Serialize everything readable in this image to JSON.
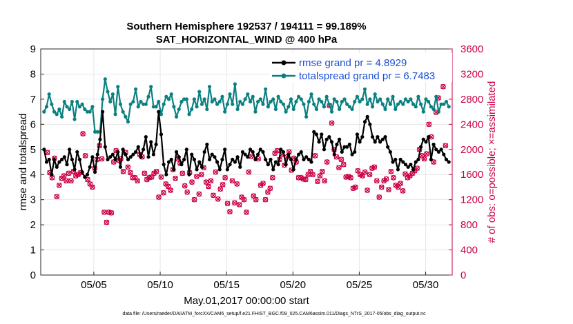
{
  "chart_data": {
    "type": "line",
    "title": "Southern Hemisphere 192537 / 194111 = 99.189%",
    "subtitle": "SAT_HORIZONTAL_WIND @ 400 hPa",
    "xlabel": "May.01,2017 00:00:00 start",
    "ylabel": "rmse and totalspread",
    "ylabel_right": "# of obs: o=possible; ×=assimilated",
    "footnote": "data file: /Users/raeder/DAI/ATM_forcXX/CAM6_setup/f.e21.FHIST_BGC.f09_025.CAM6assim.011/Diags_NTrS_2017-05/obs_diag_output.nc",
    "xlim": [
      1,
      32
    ],
    "ylim": [
      0,
      9
    ],
    "ylim_right": [
      0,
      3600
    ],
    "x_tick_values": [
      5,
      10,
      15,
      20,
      25,
      30
    ],
    "x_tick_labels": [
      "05/05",
      "05/10",
      "05/15",
      "05/20",
      "05/25",
      "05/30"
    ],
    "y_ticks": [
      "0",
      "1",
      "2",
      "3",
      "4",
      "5",
      "6",
      "7",
      "8",
      "9"
    ],
    "y_ticks_right": [
      "0",
      "400",
      "800",
      "1200",
      "1600",
      "2000",
      "2400",
      "2800",
      "3200",
      "3600"
    ],
    "grid": true,
    "legend_position": "top-right",
    "colors": {
      "rmse": "#000000",
      "spread": "#0b8080",
      "obs": "#cc0044"
    },
    "series": [
      {
        "name": "rmse grand pr = 4.8929",
        "axis": "left",
        "values": [
          5.0,
          4.5,
          4.6,
          4.0,
          4.6,
          4.3,
          4.5,
          4.6,
          4.7,
          4.4,
          5.0,
          4.6,
          4.2,
          4.9,
          4.6,
          4.1,
          3.9,
          4.0,
          4.3,
          4.7,
          4.1,
          4.8,
          5.4,
          6.5,
          5.1,
          4.6,
          4.7,
          4.8,
          4.6,
          4.9,
          4.3,
          5.0,
          4.8,
          4.6,
          4.7,
          4.8,
          4.9,
          5.1,
          4.7,
          5.0,
          5.5,
          4.7,
          5.3,
          4.8,
          5.2,
          6.5,
          5.6,
          4.4,
          4.0,
          4.5,
          4.6,
          4.2,
          4.9,
          4.7,
          4.4,
          4.6,
          5.0,
          4.0,
          4.8,
          4.6,
          4.2,
          4.5,
          4.3,
          4.9,
          5.2,
          4.6,
          4.8,
          4.7,
          4.5,
          4.2,
          4.6,
          5.0,
          4.2,
          4.4,
          4.6,
          4.5,
          4.7,
          4.3,
          4.9,
          4.8,
          4.7,
          5.0,
          4.9,
          4.6,
          4.8,
          5.0,
          4.9,
          4.6,
          4.4,
          4.6,
          4.2,
          4.5,
          4.4,
          5.0,
          4.9,
          4.4,
          4.8,
          4.6,
          4.2,
          4.6,
          4.8,
          4.9,
          4.6,
          4.7,
          4.6,
          4.5,
          5.7,
          5.6,
          5.3,
          5.6,
          5.0,
          5.4,
          5.5,
          5.3,
          4.8,
          5.2,
          5.4,
          4.9,
          5.1,
          5.1,
          5.2,
          4.8,
          4.9,
          5.6,
          5.3,
          5.5,
          6.1,
          6.3,
          6.0,
          5.5,
          5.3,
          5.5,
          5.3,
          5.4,
          5.5,
          5.1,
          4.9,
          4.5,
          4.6,
          4.2,
          4.6,
          4.5,
          4.4,
          4.3,
          4.4,
          4.2,
          4.5,
          4.6,
          5.1,
          5.4,
          5.3,
          5.5,
          4.6,
          5.2,
          5.0,
          4.9,
          5.0,
          4.8,
          4.6,
          4.5
        ]
      },
      {
        "name": "totalspread grand pr = 6.7483",
        "axis": "left",
        "values": [
          6.5,
          6.7,
          7.2,
          6.8,
          6.5,
          6.4,
          6.6,
          6.3,
          6.9,
          6.7,
          6.6,
          6.9,
          6.2,
          6.9,
          6.7,
          6.8,
          6.6,
          6.5,
          6.5,
          6.7,
          5.7,
          5.7,
          5.7,
          7.0,
          7.8,
          7.3,
          6.9,
          7.2,
          6.4,
          7.5,
          6.8,
          6.5,
          6.3,
          6.1,
          6.8,
          6.9,
          7.4,
          6.7,
          6.9,
          6.8,
          6.8,
          7.1,
          7.5,
          6.7,
          6.7,
          6.9,
          6.4,
          6.8,
          7.1,
          7.0,
          7.2,
          6.7,
          6.3,
          6.6,
          6.9,
          7.0,
          7.0,
          6.4,
          6.6,
          7.0,
          6.7,
          7.3,
          6.8,
          7.0,
          6.6,
          7.5,
          6.9,
          7.0,
          6.8,
          6.9,
          7.1,
          6.5,
          6.8,
          7.2,
          6.8,
          7.6,
          6.6,
          6.9,
          6.8,
          7.0,
          7.2,
          6.9,
          7.1,
          6.5,
          6.9,
          7.0,
          6.8,
          7.4,
          6.7,
          6.9,
          7.0,
          6.6,
          7.1,
          6.9,
          6.8,
          6.5,
          6.7,
          7.0,
          6.6,
          6.9,
          7.1,
          7.0,
          6.8,
          6.3,
          6.9,
          7.2,
          6.8,
          6.6,
          7.0,
          6.9,
          6.7,
          7.1,
          6.8,
          6.5,
          7.0,
          6.9,
          6.6,
          6.9,
          7.0,
          6.8,
          6.7,
          6.6,
          6.9,
          7.1,
          6.9,
          7.0,
          7.4,
          6.8,
          7.0,
          6.7,
          7.2,
          6.9,
          7.0,
          6.8,
          6.6,
          7.0,
          6.8,
          7.1,
          6.6,
          6.8,
          6.9,
          6.8,
          7.0,
          6.9,
          7.0,
          6.8,
          6.7,
          7.1,
          6.8,
          6.5,
          7.0,
          6.9,
          6.7,
          6.6,
          7.1,
          6.5,
          6.8,
          6.8,
          6.9,
          6.7
        ]
      },
      {
        "name": "# of obs (possible)",
        "axis": "right",
        "marker": "o",
        "values": [
          1950,
          1630,
          1550,
          1860,
          1250,
          1430,
          1540,
          1580,
          1500,
          1620,
          1500,
          1650,
          1580,
          1600,
          1630,
          2250,
          1900,
          1520,
          1450,
          1400,
          1700,
          1840,
          2060,
          1850,
          1000,
          840,
          1000,
          990,
          1800,
          1980,
          1830,
          1850,
          1650,
          1950,
          1720,
          1630,
          1550,
          1550,
          1500,
          1920,
          1880,
          1620,
          1520,
          1550,
          1560,
          1620,
          1650,
          1240,
          1560,
          1310,
          1450,
          1410,
          1350,
          1680,
          1540,
          1850,
          1780,
          1620,
          1420,
          1320,
          1630,
          1480,
          1200,
          1570,
          1290,
          1600,
          1710,
          1480,
          1410,
          1500,
          1270,
          1640,
          1210,
          1370,
          1440,
          1550,
          1140,
          1010,
          1500,
          1150,
          1450,
          1120,
          1240,
          1200,
          1000,
          1640,
          1890,
          1260,
          1200,
          1850,
          1430,
          1460,
          1200,
          1320,
          1380,
          1550,
          1940,
          1980,
          1840,
          1920,
          1750,
          1880,
          1960,
          1670,
          1860,
          1800,
          1550,
          1550,
          1530,
          1520,
          1600,
          1650,
          1600,
          1900,
          1490,
          1580,
          1650,
          1500,
          1800,
          2700,
          2420,
          2000,
          1880,
          1710,
          1840,
          1760,
          1560,
          1570,
          1550,
          1380,
          1400,
          1660,
          1600,
          1580,
          1640,
          1350,
          1600,
          1700,
          1720,
          1500,
          1240,
          1400,
          1500,
          1530,
          1360,
          1650,
          1550,
          1430,
          1400,
          1460,
          1340,
          1610,
          1550,
          1580,
          1620,
          1660,
          1700,
          2000,
          1900,
          1850,
          1930,
          2400,
          2200,
          1800,
          2590,
          2820,
          3230,
          3000,
          2060
        ]
      },
      {
        "name": "# of obs (assimilated)",
        "axis": "right",
        "marker": "x",
        "values": [
          1950,
          1630,
          1550,
          1860,
          1250,
          1430,
          1540,
          1580,
          1500,
          1620,
          1500,
          1650,
          1580,
          1600,
          1630,
          2250,
          1900,
          1520,
          1450,
          1400,
          1700,
          1840,
          2060,
          1850,
          1000,
          840,
          1000,
          990,
          1800,
          1980,
          1830,
          1850,
          1650,
          1950,
          1720,
          1630,
          1550,
          1550,
          1500,
          1920,
          1880,
          1620,
          1520,
          1550,
          1560,
          1620,
          1650,
          1240,
          1560,
          1310,
          1450,
          1410,
          1350,
          1680,
          1540,
          1850,
          1780,
          1620,
          1420,
          1320,
          1630,
          1480,
          1200,
          1570,
          1290,
          1600,
          1710,
          1480,
          1410,
          1500,
          1270,
          1640,
          1210,
          1370,
          1440,
          1550,
          1140,
          1010,
          1500,
          1150,
          1450,
          1120,
          1240,
          1200,
          1000,
          1640,
          1890,
          1260,
          1200,
          1850,
          1430,
          1460,
          1200,
          1320,
          1380,
          1550,
          1940,
          1980,
          1840,
          1920,
          1750,
          1880,
          1960,
          1670,
          1860,
          1800,
          1550,
          1550,
          1530,
          1520,
          1600,
          1650,
          1600,
          1900,
          1490,
          1580,
          1650,
          1500,
          1800,
          2700,
          2420,
          2000,
          1880,
          1710,
          1840,
          1760,
          1560,
          1570,
          1550,
          1380,
          1400,
          1660,
          1600,
          1580,
          1640,
          1350,
          1600,
          1700,
          1720,
          1500,
          1240,
          1400,
          1500,
          1530,
          1360,
          1650,
          1550,
          1430,
          1400,
          1460,
          1340,
          1610,
          1550,
          1580,
          1620,
          1660,
          1700,
          2000,
          1900,
          1850,
          1930,
          2400,
          2200,
          1800,
          2590,
          2820,
          3230,
          3000,
          2060
        ]
      }
    ]
  }
}
